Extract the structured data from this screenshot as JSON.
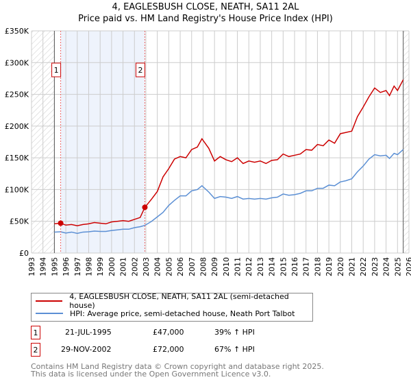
{
  "chart_data": {
    "type": "line",
    "title": "4, EAGLESBUSH CLOSE, NEATH, SA11 2AL",
    "subtitle": "Price paid vs. HM Land Registry's House Price Index (HPI)",
    "xlim": [
      1993,
      2026
    ],
    "ylim": [
      0,
      350000
    ],
    "x_ticks": [
      "1993",
      "1994",
      "1995",
      "1996",
      "1997",
      "1998",
      "1999",
      "2000",
      "2001",
      "2002",
      "2003",
      "2004",
      "2005",
      "2006",
      "2007",
      "2008",
      "2009",
      "2010",
      "2011",
      "2012",
      "2013",
      "2014",
      "2015",
      "2016",
      "2017",
      "2018",
      "2019",
      "2020",
      "2021",
      "2022",
      "2023",
      "2024",
      "2025",
      "2026"
    ],
    "y_ticks": [
      {
        "v": 0,
        "label": "£0"
      },
      {
        "v": 50000,
        "label": "£50K"
      },
      {
        "v": 100000,
        "label": "£100K"
      },
      {
        "v": 150000,
        "label": "£150K"
      },
      {
        "v": 200000,
        "label": "£200K"
      },
      {
        "v": 250000,
        "label": "£250K"
      },
      {
        "v": 300000,
        "label": "£300K"
      },
      {
        "v": 350000,
        "label": "£350K"
      }
    ],
    "grid": true,
    "series": [
      {
        "name": "4, EAGLESBUSH CLOSE, NEATH, SA11 2AL (semi-detached house)",
        "color": "#cc0000",
        "x": [
          1995,
          1995.55,
          1996,
          1996.5,
          1997,
          1997.5,
          1998,
          1998.5,
          1999,
          1999.5,
          2000,
          2000.5,
          2001,
          2001.5,
          2002,
          2002.5,
          2002.91,
          2003.5,
          2004,
          2004.5,
          2005,
          2005.5,
          2006,
          2006.5,
          2007,
          2007.5,
          2007.9,
          2008.5,
          2009,
          2009.5,
          2010,
          2010.5,
          2011,
          2011.5,
          2012,
          2012.5,
          2013,
          2013.5,
          2014,
          2014.5,
          2015,
          2015.5,
          2016,
          2016.5,
          2017,
          2017.5,
          2018,
          2018.5,
          2019,
          2019.5,
          2020,
          2020.5,
          2021,
          2021.5,
          2022,
          2022.5,
          2023,
          2023.5,
          2024,
          2024.3,
          2024.7,
          2025,
          2025.5
        ],
        "y": [
          46000,
          47000,
          44000,
          45000,
          43000,
          45000,
          46000,
          48000,
          47000,
          46000,
          49000,
          50000,
          51000,
          50000,
          53000,
          56000,
          72000,
          85000,
          97000,
          120000,
          133000,
          148000,
          152000,
          150000,
          163000,
          167000,
          180000,
          165000,
          145000,
          152000,
          147000,
          144000,
          150000,
          141000,
          145000,
          143000,
          145000,
          141000,
          146000,
          147000,
          156000,
          152000,
          154000,
          156000,
          163000,
          162000,
          171000,
          169000,
          178000,
          173000,
          188000,
          190000,
          192000,
          215000,
          230000,
          246000,
          260000,
          253000,
          256000,
          248000,
          263000,
          256000,
          273000
        ]
      },
      {
        "name": "HPI: Average price, semi-detached house, Neath Port Talbot",
        "color": "#5b8fd4",
        "x": [
          1995,
          1995.55,
          1996,
          1996.5,
          1997,
          1997.5,
          1998,
          1998.5,
          1999,
          1999.5,
          2000,
          2000.5,
          2001,
          2001.5,
          2002,
          2002.5,
          2002.91,
          2003.5,
          2004,
          2004.5,
          2005,
          2005.5,
          2006,
          2006.5,
          2007,
          2007.5,
          2007.9,
          2008.5,
          2009,
          2009.5,
          2010,
          2010.5,
          2011,
          2011.5,
          2012,
          2012.5,
          2013,
          2013.5,
          2014,
          2014.5,
          2015,
          2015.5,
          2016,
          2016.5,
          2017,
          2017.5,
          2018,
          2018.5,
          2019,
          2019.5,
          2020,
          2020.5,
          2021,
          2021.5,
          2022,
          2022.5,
          2023,
          2023.5,
          2024,
          2024.3,
          2024.7,
          2025,
          2025.5
        ],
        "y": [
          33000,
          33500,
          31500,
          33000,
          31000,
          33000,
          33500,
          34500,
          34000,
          34000,
          35500,
          36500,
          37500,
          37500,
          40000,
          41500,
          43500,
          50000,
          57000,
          64000,
          75000,
          83000,
          90000,
          90000,
          98000,
          100000,
          106000,
          96000,
          86000,
          89000,
          88000,
          86000,
          89000,
          85000,
          86000,
          85000,
          86000,
          85000,
          87000,
          88000,
          93000,
          91000,
          92000,
          94000,
          98000,
          98000,
          102000,
          102000,
          107000,
          106000,
          112000,
          114000,
          117000,
          128000,
          137000,
          148000,
          155000,
          153000,
          154000,
          149000,
          157000,
          155000,
          163000
        ]
      }
    ],
    "sales": [
      {
        "id": "1",
        "x": 1995.55,
        "price": 47000,
        "date": "21-JUL-1995",
        "price_label": "£47,000",
        "hpi": "39% ↑ HPI"
      },
      {
        "id": "2",
        "x": 2002.91,
        "price": 72000,
        "date": "29-NOV-2002",
        "price_label": "£72,000",
        "hpi": "67% ↑ HPI"
      }
    ],
    "hatched_before": 1995,
    "hatched_after": 2025.5
  },
  "footer": {
    "line1": "Contains HM Land Registry data © Crown copyright and database right 2025.",
    "line2": "This data is licensed under the Open Government Licence v3.0."
  }
}
